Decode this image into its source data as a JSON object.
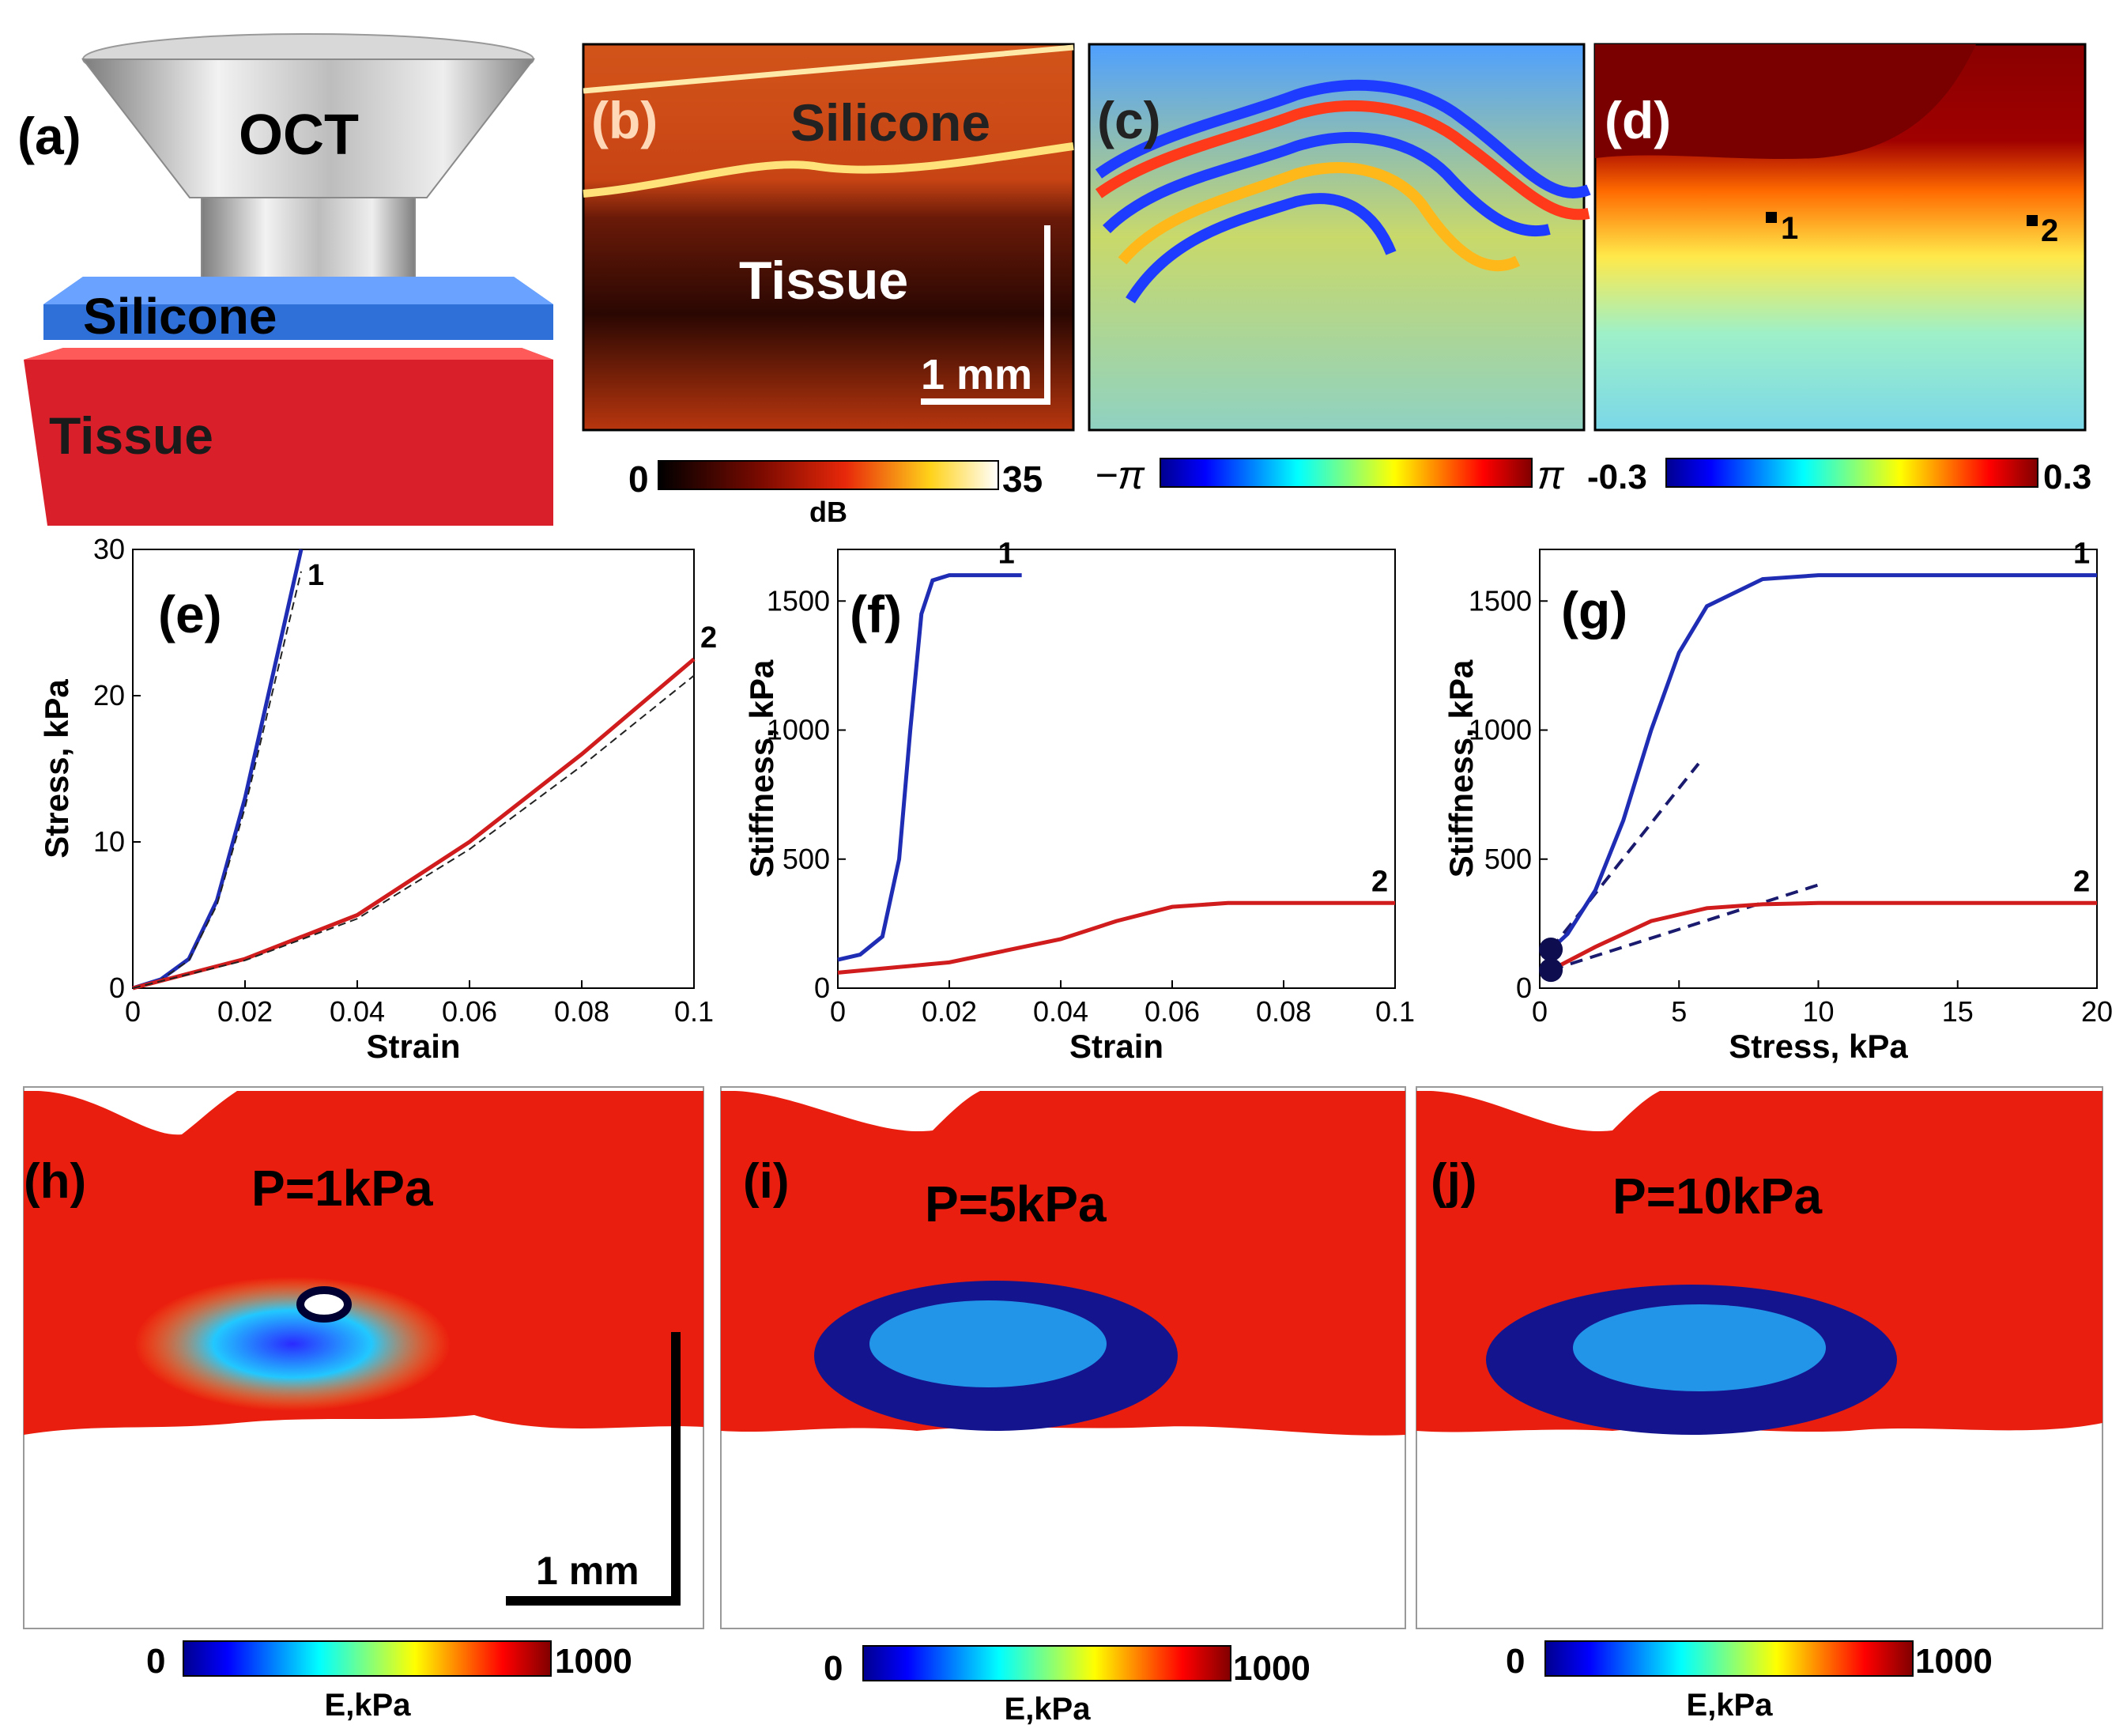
{
  "panel_a": {
    "label": "(a)",
    "lens_label": "OCT",
    "top_layer": "Silicone",
    "bottom_layer": "Tissue",
    "colors": {
      "silicone": "#2f6fd8",
      "tissue": "#d9202a"
    }
  },
  "panel_b": {
    "label": "(b)",
    "silicone_label": "Silicone",
    "tissue_label": "Tissue",
    "scale_bar": "1 mm",
    "colorbar": {
      "min": "0",
      "max": "35",
      "unit": "dB"
    }
  },
  "panel_c": {
    "label": "(c)",
    "colorbar": {
      "min": "−π",
      "max": "π"
    }
  },
  "panel_d": {
    "label": "(d)",
    "marker_1": "1",
    "marker_2": "2",
    "colorbar": {
      "min": "-0.3",
      "max": "0.3"
    }
  },
  "chart_data": [
    {
      "panel": "(e)",
      "type": "line",
      "xlabel": "Strain",
      "ylabel": "Stress, kPa",
      "xlim": [
        0,
        0.1
      ],
      "ylim": [
        0,
        30
      ],
      "xticks": [
        "0",
        "0.02",
        "0.04",
        "0.06",
        "0.08",
        "0.1"
      ],
      "yticks": [
        "0",
        "10",
        "20",
        "30"
      ],
      "series": [
        {
          "name": "1",
          "color": "#1f2db4",
          "x": [
            0,
            0.005,
            0.01,
            0.015,
            0.02,
            0.025,
            0.03
          ],
          "y": [
            0,
            0.6,
            2.0,
            6.0,
            13.0,
            21.5,
            30.0
          ]
        },
        {
          "name": "2",
          "color": "#d01c1c",
          "x": [
            0,
            0.02,
            0.04,
            0.06,
            0.08,
            0.1
          ],
          "y": [
            0,
            2.0,
            5.0,
            10.0,
            16.0,
            22.5
          ]
        }
      ]
    },
    {
      "panel": "(f)",
      "type": "line",
      "xlabel": "Strain",
      "ylabel": "Stiffness, kPa",
      "xlim": [
        0,
        0.1
      ],
      "ylim": [
        0,
        1700
      ],
      "xticks": [
        "0",
        "0.02",
        "0.04",
        "0.06",
        "0.08",
        "0.1"
      ],
      "yticks": [
        "0",
        "500",
        "1000",
        "1500"
      ],
      "series": [
        {
          "name": "1",
          "color": "#1f2db4",
          "x": [
            0,
            0.004,
            0.008,
            0.011,
            0.013,
            0.015,
            0.017,
            0.02,
            0.033
          ],
          "y": [
            110,
            130,
            200,
            500,
            1000,
            1450,
            1580,
            1600,
            1600
          ]
        },
        {
          "name": "2",
          "color": "#d01c1c",
          "x": [
            0,
            0.02,
            0.04,
            0.05,
            0.06,
            0.07,
            0.1
          ],
          "y": [
            60,
            100,
            190,
            260,
            315,
            330,
            330
          ]
        }
      ]
    },
    {
      "panel": "(g)",
      "type": "line",
      "xlabel": "Stress, kPa",
      "ylabel": "Stiffness, kPa",
      "xlim": [
        0,
        20
      ],
      "ylim": [
        0,
        1700
      ],
      "xticks": [
        "0",
        "5",
        "10",
        "15",
        "20"
      ],
      "yticks": [
        "0",
        "500",
        "1000",
        "1500"
      ],
      "series": [
        {
          "name": "1",
          "color": "#1f2db4",
          "x": [
            0.4,
            1,
            2,
            3,
            4,
            5,
            6,
            8,
            10,
            20
          ],
          "y": [
            150,
            210,
            380,
            650,
            1000,
            1300,
            1480,
            1585,
            1600,
            1600
          ]
        },
        {
          "name": "2",
          "color": "#d01c1c",
          "x": [
            0.4,
            2,
            4,
            6,
            8,
            10,
            20
          ],
          "y": [
            70,
            160,
            260,
            310,
            325,
            330,
            330
          ]
        }
      ],
      "tangents": [
        {
          "x": [
            0.4,
            5.7
          ],
          "y": [
            150,
            870
          ]
        },
        {
          "x": [
            0.4,
            10
          ],
          "y": [
            70,
            400
          ]
        }
      ]
    }
  ],
  "panel_h": {
    "label": "(h)",
    "pressure": "P=1kPa",
    "scale_bar": "1 mm"
  },
  "panel_i": {
    "label": "(i)",
    "pressure": "P=5kPa"
  },
  "panel_j": {
    "label": "(j)",
    "pressure": "P=10kPa"
  },
  "modulus_colorbar": {
    "min": "0",
    "max": "1000",
    "unit": "E,kPa"
  }
}
